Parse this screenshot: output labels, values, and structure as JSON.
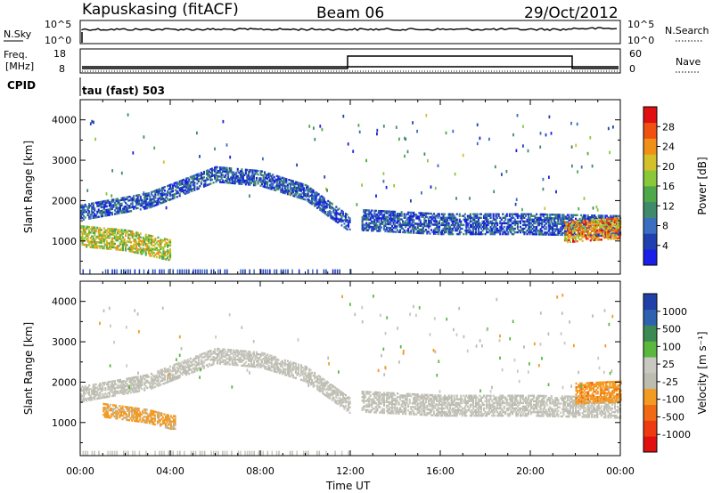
{
  "header": {
    "station": "Kapuskasing (fitACF)",
    "beam": "Beam 06",
    "date": "29/Oct/2012"
  },
  "strip_labels": {
    "nsky": "N.Sky",
    "nsearch": "N.Search",
    "freq_top": "Freq.",
    "freq_unit": "[MHz]",
    "nave": "Nave",
    "cpid": "CPID",
    "cpid_value": "tau (fast) 503"
  },
  "strip_ticks": {
    "nsky_left": [
      "10^5",
      "10^0"
    ],
    "nsky_right": [
      "10^5",
      "10^0"
    ],
    "freq_left": [
      "18",
      "8"
    ],
    "nave_right": [
      "60",
      "0"
    ]
  },
  "colors": {
    "power": [
      "#1a1ee6",
      "#2040b0",
      "#3a6ec0",
      "#3e8a6a",
      "#4ea84a",
      "#8ac83a",
      "#d4c02a",
      "#f09018",
      "#f05010",
      "#e01010"
    ],
    "velocity": [
      "#e01010",
      "#ee3a10",
      "#f06a14",
      "#f39a22",
      "#bcbcb0",
      "#c8c8c0",
      "#5ab83e",
      "#3c8a52",
      "#2e62b0",
      "#1e40a8"
    ]
  },
  "chart_data": [
    {
      "type": "heatmap",
      "panel": "power",
      "ylabel": "Slant Range [km]",
      "xlabel": "Time UT",
      "x_ticks": [
        "00:00",
        "04:00",
        "08:00",
        "12:00",
        "16:00",
        "20:00",
        "00:00"
      ],
      "xlim_hours": [
        0,
        24
      ],
      "y_ticks": [
        1000,
        2000,
        3000,
        4000
      ],
      "ylim": [
        180,
        4500
      ],
      "colorbar": {
        "label": "Power [dB]",
        "tick_labels": [
          "4",
          "8",
          "12",
          "16",
          "20",
          "24",
          "28"
        ],
        "range": [
          0,
          30
        ]
      },
      "echo_regions": [
        {
          "t_start": 0.0,
          "t_end": 12.0,
          "range_path_km": [
            [
              0,
              1700
            ],
            [
              3,
              2000
            ],
            [
              6,
              2650
            ],
            [
              8,
              2550
            ],
            [
              10,
              2200
            ],
            [
              12,
              1400
            ]
          ],
          "thickness_km": 400,
          "typical_dB": 6
        },
        {
          "t_start": 0.0,
          "t_end": 4.0,
          "range_path_km": [
            [
              0,
              1100
            ],
            [
              2,
              1000
            ],
            [
              4,
              750
            ]
          ],
          "thickness_km": 500,
          "typical_dB": 18
        },
        {
          "t_start": 12.5,
          "t_end": 24.0,
          "range_path_km": [
            [
              12.5,
              1500
            ],
            [
              16,
              1400
            ],
            [
              20,
              1400
            ],
            [
              24,
              1350
            ]
          ],
          "thickness_km": 500,
          "typical_dB": 6
        },
        {
          "t_start": 21.5,
          "t_end": 24.0,
          "range_path_km": [
            [
              21.5,
              1200
            ],
            [
              24,
              1300
            ]
          ],
          "thickness_km": 500,
          "typical_dB": 22
        }
      ]
    },
    {
      "type": "heatmap",
      "panel": "velocity",
      "ylabel": "Slant Range [km]",
      "xlabel": "Time UT",
      "x_ticks": [
        "00:00",
        "04:00",
        "08:00",
        "12:00",
        "16:00",
        "20:00",
        "00:00"
      ],
      "xlim_hours": [
        0,
        24
      ],
      "y_ticks": [
        1000,
        2000,
        3000,
        4000
      ],
      "ylim": [
        180,
        4500
      ],
      "colorbar": {
        "label": "Velocity [m s⁻¹]",
        "tick_labels": [
          "-1000",
          "-500",
          "-100",
          "-25",
          "25",
          "100",
          "500",
          "1000"
        ],
        "range": [
          -1200,
          1200
        ]
      },
      "echo_regions": [
        {
          "t_start": 0.0,
          "t_end": 12.0,
          "range_path_km": [
            [
              0,
              1700
            ],
            [
              3,
              2000
            ],
            [
              6,
              2650
            ],
            [
              8,
              2550
            ],
            [
              10,
              2200
            ],
            [
              12,
              1400
            ]
          ],
          "thickness_km": 400,
          "typical_mps": 0
        },
        {
          "t_start": 1.0,
          "t_end": 4.2,
          "range_path_km": [
            [
              1,
              1300
            ],
            [
              3,
              1150
            ],
            [
              4,
              1000
            ]
          ],
          "thickness_km": 350,
          "typical_mps": -300
        },
        {
          "t_start": 12.5,
          "t_end": 24.0,
          "range_path_km": [
            [
              12.5,
              1500
            ],
            [
              16,
              1400
            ],
            [
              20,
              1400
            ],
            [
              24,
              1350
            ]
          ],
          "thickness_km": 500,
          "typical_mps": 0
        },
        {
          "t_start": 22.0,
          "t_end": 24.0,
          "range_path_km": [
            [
              22,
              1700
            ],
            [
              24,
              1750
            ]
          ],
          "thickness_km": 500,
          "typical_mps": -400
        }
      ]
    }
  ]
}
